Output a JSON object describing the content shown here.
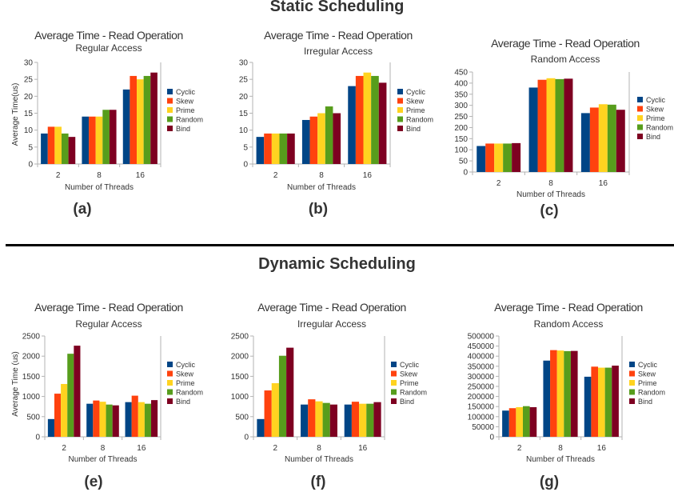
{
  "sections": {
    "static_title": "Static Scheduling",
    "dynamic_title": "Dynamic Scheduling"
  },
  "panel_letters": [
    "(a)",
    "(b)",
    "(c)",
    "(e)",
    "(f)",
    "(g)"
  ],
  "series_colors": {
    "Cyclic": "#004586",
    "Skew": "#ff420e",
    "Prime": "#ffd320",
    "Random": "#579d1c",
    "Bind": "#7e0021"
  },
  "chart_data": [
    {
      "type": "bar",
      "title": "Average Time - Read Operation",
      "subtitle": "Regular Access",
      "xlabel": "Number of Threads",
      "ylabel": "Average Time(us)",
      "categories": [
        "2",
        "8",
        "16"
      ],
      "ylim": [
        0,
        30
      ],
      "yticks": [
        "0",
        "5",
        "10",
        "15",
        "20",
        "25",
        "30"
      ],
      "grid": false,
      "legend": "right",
      "series": [
        {
          "name": "Cyclic",
          "values": [
            9,
            14,
            22
          ]
        },
        {
          "name": "Skew",
          "values": [
            11,
            14,
            26
          ]
        },
        {
          "name": "Prime",
          "values": [
            11,
            14,
            25
          ]
        },
        {
          "name": "Random",
          "values": [
            9,
            16,
            26
          ]
        },
        {
          "name": "Bind",
          "values": [
            8,
            16,
            27
          ]
        }
      ]
    },
    {
      "type": "bar",
      "title": "Average Time - Read Operation",
      "subtitle": "Irregular Access",
      "xlabel": "Number of Threads",
      "ylabel": "",
      "categories": [
        "2",
        "8",
        "16"
      ],
      "ylim": [
        0,
        30
      ],
      "yticks": [
        "0",
        "5",
        "10",
        "15",
        "20",
        "25",
        "30"
      ],
      "grid": false,
      "legend": "right",
      "series": [
        {
          "name": "Cyclic",
          "values": [
            8,
            13,
            23
          ]
        },
        {
          "name": "Skew",
          "values": [
            9,
            14,
            26
          ]
        },
        {
          "name": "Prime",
          "values": [
            9,
            15,
            27
          ]
        },
        {
          "name": "Random",
          "values": [
            9,
            17,
            26
          ]
        },
        {
          "name": "Bind",
          "values": [
            9,
            15,
            24
          ]
        }
      ]
    },
    {
      "type": "bar",
      "title": "Average Time - Read Operation",
      "subtitle": "Random Access",
      "xlabel": "Number of Threads",
      "ylabel": "",
      "categories": [
        "2",
        "8",
        "16"
      ],
      "ylim": [
        0,
        450
      ],
      "yticks": [
        "0",
        "50",
        "100",
        "150",
        "200",
        "250",
        "300",
        "350",
        "400",
        "450"
      ],
      "grid": false,
      "legend": "right",
      "series": [
        {
          "name": "Cyclic",
          "values": [
            117,
            380,
            265
          ]
        },
        {
          "name": "Skew",
          "values": [
            128,
            415,
            290
          ]
        },
        {
          "name": "Prime",
          "values": [
            128,
            422,
            305
          ]
        },
        {
          "name": "Random",
          "values": [
            128,
            418,
            303
          ]
        },
        {
          "name": "Bind",
          "values": [
            130,
            420,
            280
          ]
        }
      ]
    },
    {
      "type": "bar",
      "title": "Average Time - Read Operation",
      "subtitle": "Regular Access",
      "xlabel": "Number of Threads",
      "ylabel": "Average Time (us)",
      "categories": [
        "2",
        "8",
        "16"
      ],
      "ylim": [
        0,
        2500
      ],
      "yticks": [
        "0",
        "500",
        "1000",
        "1500",
        "2000",
        "2500"
      ],
      "grid": false,
      "legend": "right",
      "series": [
        {
          "name": "Cyclic",
          "values": [
            440,
            820,
            860
          ]
        },
        {
          "name": "Skew",
          "values": [
            1070,
            900,
            1020
          ]
        },
        {
          "name": "Prime",
          "values": [
            1310,
            870,
            860
          ]
        },
        {
          "name": "Random",
          "values": [
            2060,
            800,
            820
          ]
        },
        {
          "name": "Bind",
          "values": [
            2260,
            780,
            910
          ]
        }
      ]
    },
    {
      "type": "bar",
      "title": "Average Time - Read Operation",
      "subtitle": "Irregular Access",
      "xlabel": "Number of Threads",
      "ylabel": "",
      "categories": [
        "2",
        "8",
        "16"
      ],
      "ylim": [
        0,
        2500
      ],
      "yticks": [
        "0",
        "500",
        "1000",
        "1500",
        "2000",
        "2500"
      ],
      "grid": false,
      "legend": "right",
      "series": [
        {
          "name": "Cyclic",
          "values": [
            440,
            800,
            800
          ]
        },
        {
          "name": "Skew",
          "values": [
            1150,
            930,
            870
          ]
        },
        {
          "name": "Prime",
          "values": [
            1330,
            880,
            820
          ]
        },
        {
          "name": "Random",
          "values": [
            2010,
            840,
            820
          ]
        },
        {
          "name": "Bind",
          "values": [
            2210,
            800,
            860
          ]
        }
      ]
    },
    {
      "type": "bar",
      "title": "Average Time - Read Operation",
      "subtitle": "Random Access",
      "xlabel": "Number of Threads",
      "ylabel": "",
      "categories": [
        "2",
        "8",
        "16"
      ],
      "ylim": [
        0,
        500000
      ],
      "yticks": [
        "0",
        "50000",
        "100000",
        "150000",
        "200000",
        "250000",
        "300000",
        "350000",
        "400000",
        "450000",
        "500000"
      ],
      "grid": false,
      "legend": "right",
      "series": [
        {
          "name": "Cyclic",
          "values": [
            130000,
            378000,
            298000
          ]
        },
        {
          "name": "Skew",
          "values": [
            142000,
            430000,
            348000
          ]
        },
        {
          "name": "Prime",
          "values": [
            147000,
            428000,
            343000
          ]
        },
        {
          "name": "Random",
          "values": [
            152000,
            425000,
            343000
          ]
        },
        {
          "name": "Bind",
          "values": [
            147000,
            426000,
            353000
          ]
        }
      ]
    }
  ]
}
